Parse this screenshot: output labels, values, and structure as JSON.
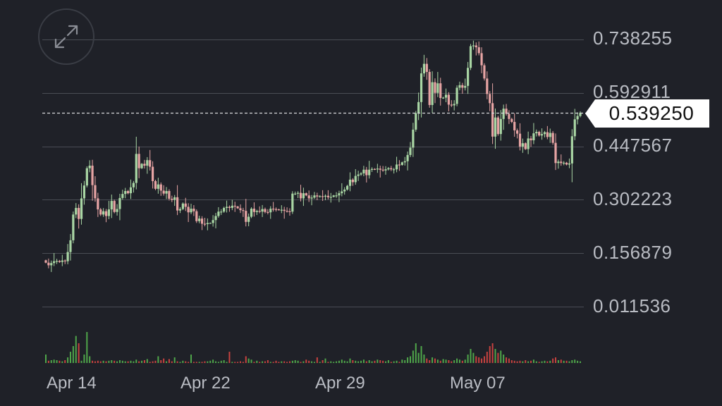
{
  "colors": {
    "background": "#1f2128",
    "grid": "#4a4d55",
    "up": "#a9d6a4",
    "down": "#e7a4a4",
    "volume_up": "#4fa64a",
    "volume_down": "#c7423f",
    "axis_text": "#b9bcc3",
    "price_tag_bg": "#ffffff"
  },
  "controls": {
    "expand_icon": "expand-arrows-icon"
  },
  "current_price": {
    "value": 0.53925,
    "label": "0.539250"
  },
  "chart_data": {
    "type": "candlestick",
    "y_axis": {
      "ticks": [
        0.738255,
        0.592911,
        0.447567,
        0.302223,
        0.156879,
        0.011536
      ],
      "tick_labels": [
        "0.738255",
        "0.592911",
        "0.447567",
        "0.302223",
        "0.156879",
        "0.011536"
      ],
      "range": [
        0.011536,
        0.738255
      ]
    },
    "x_axis": {
      "tick_labels": [
        "Apr 14",
        "Apr 22",
        "Apr 29",
        "May 07"
      ],
      "tick_index": [
        8,
        57,
        105,
        153
      ]
    },
    "grid": true,
    "closes": [
      0.131,
      0.124,
      0.13,
      0.135,
      0.136,
      0.133,
      0.137,
      0.135,
      0.16,
      0.192,
      0.262,
      0.28,
      0.25,
      0.306,
      0.341,
      0.388,
      0.395,
      0.342,
      0.306,
      0.276,
      0.262,
      0.271,
      0.258,
      0.276,
      0.299,
      0.269,
      0.277,
      0.307,
      0.318,
      0.326,
      0.32,
      0.336,
      0.348,
      0.427,
      0.388,
      0.4,
      0.395,
      0.41,
      0.392,
      0.353,
      0.332,
      0.344,
      0.327,
      0.319,
      0.326,
      0.305,
      0.302,
      0.309,
      0.273,
      0.277,
      0.292,
      0.283,
      0.268,
      0.278,
      0.271,
      0.244,
      0.251,
      0.237,
      0.236,
      0.239,
      0.239,
      0.247,
      0.258,
      0.27,
      0.27,
      0.28,
      0.283,
      0.28,
      0.286,
      0.284,
      0.279,
      0.274,
      0.272,
      0.242,
      0.256,
      0.278,
      0.269,
      0.272,
      0.27,
      0.277,
      0.269,
      0.268,
      0.278,
      0.277,
      0.276,
      0.275,
      0.275,
      0.272,
      0.271,
      0.27,
      0.319,
      0.319,
      0.321,
      0.306,
      0.32,
      0.314,
      0.306,
      0.308,
      0.314,
      0.311,
      0.312,
      0.311,
      0.313,
      0.309,
      0.31,
      0.314,
      0.314,
      0.32,
      0.325,
      0.33,
      0.34,
      0.357,
      0.35,
      0.367,
      0.371,
      0.374,
      0.384,
      0.369,
      0.384,
      0.386,
      0.385,
      0.387,
      0.384,
      0.382,
      0.385,
      0.388,
      0.385,
      0.385,
      0.398,
      0.397,
      0.404,
      0.407,
      0.424,
      0.444,
      0.493,
      0.538,
      0.568,
      0.646,
      0.672,
      0.65,
      0.56,
      0.622,
      0.593,
      0.619,
      0.579,
      0.58,
      0.588,
      0.561,
      0.559,
      0.563,
      0.607,
      0.614,
      0.607,
      0.612,
      0.661,
      0.72,
      0.722,
      0.717,
      0.701,
      0.668,
      0.632,
      0.59,
      0.565,
      0.474,
      0.526,
      0.481,
      0.522,
      0.55,
      0.536,
      0.522,
      0.514,
      0.491,
      0.482,
      0.447,
      0.456,
      0.44,
      0.469,
      0.464,
      0.483,
      0.487,
      0.477,
      0.481,
      0.486,
      0.473,
      0.484,
      0.457,
      0.402,
      0.406,
      0.402,
      0.403,
      0.398,
      0.401,
      0.475,
      0.521,
      0.53,
      0.539
    ],
    "volume_index": [
      0.15,
      0.04,
      0.05,
      0.06,
      0.05,
      0.04,
      0.03,
      0.05,
      0.1,
      0.2,
      0.3,
      0.48,
      0.35,
      0.04,
      0.15,
      0.55,
      0.12,
      0.04,
      0.03,
      0.04,
      0.03,
      0.04,
      0.03,
      0.04,
      0.05,
      0.04,
      0.03,
      0.05,
      0.04,
      0.03,
      0.03,
      0.04,
      0.03,
      0.06,
      0.03,
      0.04,
      0.05,
      0.07,
      0.02,
      0.03,
      0.04,
      0.12,
      0.05,
      0.08,
      0.03,
      0.07,
      0.03,
      0.1,
      0.03,
      0.02,
      0.04,
      0.03,
      0.02,
      0.15,
      0.02,
      0.02,
      0.02,
      0.02,
      0.03,
      0.03,
      0.04,
      0.06,
      0.03,
      0.02,
      0.04,
      0.05,
      0.02,
      0.2,
      0.02,
      0.02,
      0.02,
      0.03,
      0.02,
      0.12,
      0.08,
      0.06,
      0.02,
      0.04,
      0.02,
      0.03,
      0.03,
      0.05,
      0.02,
      0.02,
      0.04,
      0.02,
      0.03,
      0.03,
      0.02,
      0.03,
      0.04,
      0.05,
      0.04,
      0.02,
      0.03,
      0.06,
      0.04,
      0.03,
      0.02,
      0.1,
      0.02,
      0.05,
      0.08,
      0.02,
      0.03,
      0.02,
      0.03,
      0.04,
      0.06,
      0.04,
      0.03,
      0.08,
      0.05,
      0.04,
      0.03,
      0.04,
      0.06,
      0.03,
      0.05,
      0.03,
      0.04,
      0.06,
      0.05,
      0.04,
      0.03,
      0.05,
      0.02,
      0.03,
      0.04,
      0.02,
      0.06,
      0.05,
      0.1,
      0.12,
      0.22,
      0.35,
      0.18,
      0.3,
      0.15,
      0.08,
      0.05,
      0.1,
      0.08,
      0.06,
      0.04,
      0.07,
      0.06,
      0.05,
      0.03,
      0.05,
      0.08,
      0.06,
      0.04,
      0.06,
      0.15,
      0.25,
      0.18,
      0.12,
      0.1,
      0.08,
      0.12,
      0.2,
      0.3,
      0.35,
      0.25,
      0.18,
      0.22,
      0.15,
      0.1,
      0.08,
      0.05,
      0.04,
      0.03,
      0.04,
      0.03,
      0.05,
      0.03,
      0.04,
      0.06,
      0.03,
      0.02,
      0.03,
      0.04,
      0.03,
      0.04,
      0.08,
      0.1,
      0.05,
      0.06,
      0.04,
      0.04,
      0.03,
      0.05,
      0.06,
      0.04,
      0.03
    ]
  }
}
